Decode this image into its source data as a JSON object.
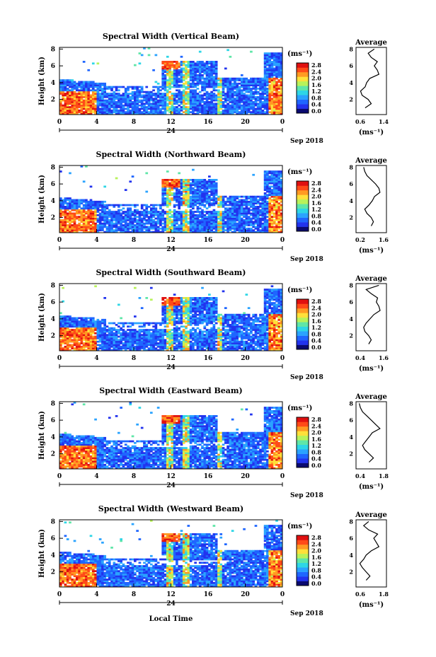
{
  "figure": {
    "xlabel": "Local Time",
    "date_label": "Sep 2018",
    "day_label": "24",
    "x_ticks": [
      "0",
      "4",
      "8",
      "12",
      "16",
      "20",
      "0"
    ],
    "ylabel": "Height (km)",
    "y_ticks": [
      "2",
      "4",
      "6",
      "8"
    ],
    "colorbar_unit": "(ms⁻¹)",
    "colorbar_ticks": [
      "0.0",
      "0.4",
      "0.8",
      "1.2",
      "1.6",
      "2.0",
      "2.4",
      "2.8"
    ],
    "colorbar_colors": [
      "#0a0a70",
      "#2233ee",
      "#1f66ff",
      "#2aa3ff",
      "#2ed6e6",
      "#5fe6a8",
      "#b8f25a",
      "#ffe03a",
      "#ff9a22",
      "#ff4a18",
      "#e01010"
    ],
    "avg_title": "Average",
    "avg_xlabel": "(ms⁻¹)"
  },
  "chart_data": [
    {
      "type": "heatmap",
      "title": "Spectral Width (Vertical Beam)",
      "xlabel": "Local Time",
      "ylabel": "Height (km)",
      "xlim": [
        0,
        24
      ],
      "ylim": [
        0.2,
        8.2
      ],
      "colorbar": {
        "label": "(ms⁻¹)",
        "range": [
          0,
          2.8
        ]
      },
      "avg_profile": {
        "xlim": [
          0.6,
          1.6
        ],
        "xticks": [
          "0.6",
          "1.4"
        ],
        "height": [
          1,
          1.5,
          2,
          2.5,
          3,
          3.5,
          4,
          4.5,
          5,
          5.5,
          6,
          6.5,
          7,
          7.5,
          8
        ],
        "width": [
          0.9,
          1.1,
          1.0,
          0.8,
          0.75,
          0.9,
          0.95,
          1.05,
          1.35,
          1.3,
          1.2,
          1.3,
          1.1,
          1.0,
          1.2
        ]
      }
    },
    {
      "type": "heatmap",
      "title": "Spectral Width (Northward Beam)",
      "xlabel": "Local Time",
      "ylabel": "Height (km)",
      "xlim": [
        0,
        24
      ],
      "ylim": [
        0.2,
        8.2
      ],
      "colorbar": {
        "label": "(ms⁻¹)",
        "range": [
          0,
          2.8
        ]
      },
      "avg_profile": {
        "xlim": [
          0.2,
          1.6
        ],
        "xticks": [
          "0.2",
          "1.6"
        ],
        "height": [
          1,
          1.5,
          2,
          2.5,
          3,
          3.5,
          4,
          4.5,
          5,
          5.5,
          6,
          6.5,
          7,
          7.5,
          8
        ],
        "width": [
          0.9,
          1.0,
          0.9,
          0.7,
          0.6,
          0.8,
          0.95,
          1.05,
          1.3,
          1.25,
          1.1,
          0.9,
          0.7,
          0.6,
          0.55
        ]
      }
    },
    {
      "type": "heatmap",
      "title": "Spectral Width (Southward Beam)",
      "xlabel": "Local Time",
      "ylabel": "Height (km)",
      "xlim": [
        0,
        24
      ],
      "ylim": [
        0.2,
        8.2
      ],
      "colorbar": {
        "label": "(ms⁻¹)",
        "range": [
          0,
          2.8
        ]
      },
      "avg_profile": {
        "xlim": [
          0.4,
          1.6
        ],
        "xticks": [
          "0.4",
          "1.6"
        ],
        "height": [
          1,
          1.5,
          2,
          2.5,
          3,
          3.5,
          4,
          4.5,
          5,
          5.5,
          6,
          6.5,
          7,
          7.5,
          8
        ],
        "width": [
          0.9,
          1.0,
          0.9,
          0.75,
          0.7,
          0.8,
          0.95,
          1.1,
          1.35,
          1.3,
          1.2,
          1.25,
          1.0,
          0.8,
          1.3
        ]
      }
    },
    {
      "type": "heatmap",
      "title": "Spectral Width (Eastward Beam)",
      "xlabel": "Local Time",
      "ylabel": "Height (km)",
      "xlim": [
        0,
        24
      ],
      "ylim": [
        0.2,
        8.2
      ],
      "colorbar": {
        "label": "(ms⁻¹)",
        "range": [
          0,
          2.8
        ]
      },
      "avg_profile": {
        "xlim": [
          0.4,
          1.8
        ],
        "xticks": [
          "0.4",
          "1.8"
        ],
        "height": [
          1,
          1.5,
          2,
          2.5,
          3,
          3.5,
          4,
          4.5,
          5,
          5.5,
          6,
          6.5,
          7,
          7.5,
          8
        ],
        "width": [
          1.0,
          1.2,
          1.0,
          0.8,
          0.7,
          0.85,
          1.0,
          1.15,
          1.5,
          1.3,
          1.1,
          0.9,
          0.7,
          0.6,
          0.55
        ]
      }
    },
    {
      "type": "heatmap",
      "title": "Spectral Width (Westward Beam)",
      "xlabel": "Local Time",
      "ylabel": "Height (km)",
      "xlim": [
        0,
        24
      ],
      "ylim": [
        0.2,
        8.2
      ],
      "colorbar": {
        "label": "(ms⁻¹)",
        "range": [
          0,
          2.8
        ]
      },
      "avg_profile": {
        "xlim": [
          0.6,
          1.8
        ],
        "xticks": [
          "0.6",
          "1.8"
        ],
        "height": [
          1,
          1.5,
          2,
          2.5,
          3,
          3.5,
          4,
          4.5,
          5,
          5.5,
          6,
          6.5,
          7,
          7.5,
          8
        ],
        "width": [
          1.0,
          1.15,
          1.0,
          0.85,
          0.75,
          0.9,
          1.0,
          1.2,
          1.5,
          1.4,
          1.3,
          1.45,
          1.1,
          0.9,
          1.1
        ]
      }
    }
  ]
}
